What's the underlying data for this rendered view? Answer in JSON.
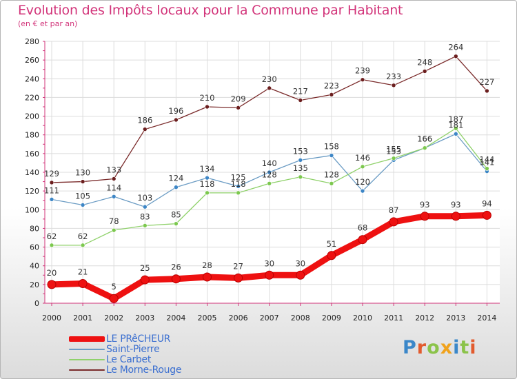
{
  "header": {
    "title": "Evolution des Impôts locaux pour la Commune par Habitant",
    "subtitle": "(en € et par an)"
  },
  "brand": {
    "text": "Proxiti",
    "colors": [
      "#3a87c9",
      "#e25b2e",
      "#8bc34a",
      "#f0a21c",
      "#3a87c9",
      "#8bc34a",
      "#e25b2e"
    ]
  },
  "colors": {
    "title": "#d2347a",
    "axis": "#d2347a",
    "grid": "#dcdcdc",
    "legend_text": "#3b6fd0"
  },
  "chart_data": {
    "type": "line",
    "title": "Evolution des Impôts locaux pour la Commune par Habitant",
    "subtitle": "(en € et par an)",
    "xlabel": "",
    "ylabel": "",
    "categories": [
      "2000",
      "2001",
      "2002",
      "2003",
      "2004",
      "2005",
      "2006",
      "2007",
      "2008",
      "2009",
      "2010",
      "2011",
      "2012",
      "2013",
      "2014"
    ],
    "ylim": [
      0,
      280
    ],
    "yticks": [
      0,
      20,
      40,
      60,
      80,
      100,
      120,
      140,
      160,
      180,
      200,
      220,
      240,
      260,
      280
    ],
    "grid": true,
    "legend_position": "bottom-left",
    "series": [
      {
        "name": "LE PRêCHEUR",
        "color": "#ee1111",
        "marker": "#ee1111",
        "values": [
          20,
          21,
          5,
          25,
          26,
          28,
          27,
          30,
          30,
          51,
          68,
          87,
          93,
          93,
          94
        ],
        "labels": [
          "20",
          "21",
          "5",
          "25",
          "26",
          "28",
          "27",
          "30",
          "30",
          "51",
          "68",
          "87",
          "93",
          "93",
          "94"
        ]
      },
      {
        "name": "Saint-Pierre",
        "color": "#6b9cc4",
        "marker": "#3d86c6",
        "values": [
          111,
          105,
          114,
          103,
          124,
          134,
          125,
          140,
          153,
          158,
          120,
          153,
          166,
          181,
          141
        ],
        "labels": [
          "111",
          "105",
          "114",
          "103",
          "124",
          "134",
          "125",
          "140",
          "153",
          "158",
          "120",
          "153",
          "166",
          "181",
          "141"
        ]
      },
      {
        "name": "Le Carbet",
        "color": "#8fd16a",
        "marker": "#7cc84e",
        "values": [
          62,
          62,
          78,
          83,
          85,
          118,
          118,
          128,
          135,
          128,
          146,
          155,
          166,
          187,
          144
        ],
        "labels": [
          "62",
          "62",
          "78",
          "83",
          "85",
          "118",
          "118",
          "128",
          "135",
          "128",
          "146",
          "155",
          "166",
          "187",
          "144"
        ]
      },
      {
        "name": "Le Morne-Rouge",
        "color": "#7a2a2a",
        "marker": "#6b1e1e",
        "values": [
          129,
          130,
          133,
          186,
          196,
          210,
          209,
          230,
          217,
          223,
          239,
          233,
          248,
          264,
          227
        ],
        "labels": [
          "129",
          "130",
          "133",
          "186",
          "196",
          "210",
          "209",
          "230",
          "217",
          "223",
          "239",
          "233",
          "248",
          "264",
          "227"
        ]
      }
    ]
  }
}
